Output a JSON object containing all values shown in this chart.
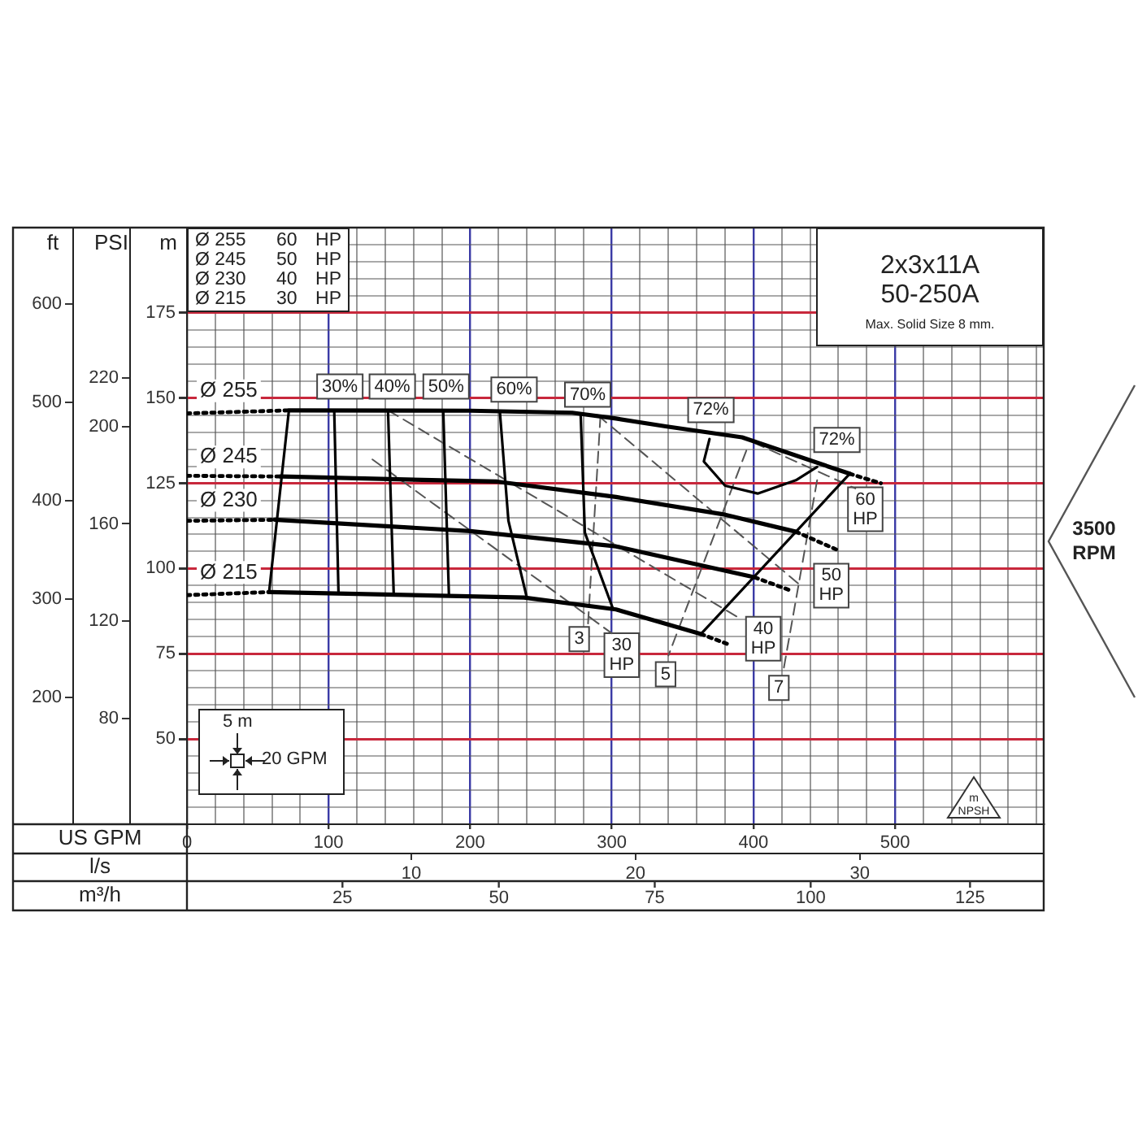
{
  "chart_data": {
    "type": "line",
    "xlabel": "US GPM",
    "x2label": "l/s",
    "ylabel": "m",
    "y2label": "ft",
    "y3label": "PSI",
    "xlim": [
      0,
      605
    ],
    "xticks": [
      0,
      {
        "value": 20,
        "label": null
      },
      {
        "value": 40,
        "label": null
      },
      {
        "value": 60,
        "label": null
      },
      {
        "value": 80,
        "label": null
      },
      100,
      {
        "value": 120,
        "label": null
      },
      {
        "value": 140,
        "label": null
      },
      {
        "value": 160,
        "label": null
      },
      {
        "value": 180,
        "label": null
      },
      200,
      {
        "value": 220,
        "label": null
      },
      {
        "value": 240,
        "label": null
      },
      {
        "value": 260,
        "label": null
      },
      {
        "value": 280,
        "label": null
      },
      300,
      {
        "value": 320,
        "label": null
      },
      {
        "value": 340,
        "label": null
      },
      {
        "value": 360,
        "label": null
      },
      {
        "value": 380,
        "label": null
      },
      400,
      {
        "value": 420,
        "label": null
      },
      {
        "value": 440,
        "label": null
      },
      {
        "value": 460,
        "label": null
      },
      {
        "value": 480,
        "label": null
      },
      500,
      {
        "value": 520,
        "label": null
      },
      {
        "value": 540,
        "label": null
      },
      {
        "value": 560,
        "label": null
      },
      {
        "value": 580,
        "label": null
      },
      {
        "value": 600,
        "label": null
      }
    ],
    "x2lim": [
      0,
      38.2
    ],
    "x2ticks": [
      10,
      20,
      30
    ],
    "ylim": [
      25,
      200
    ],
    "yticks": [
      {
        "value": 30,
        "label": null
      },
      {
        "value": 35,
        "label": null
      },
      {
        "value": 40,
        "label": null
      },
      {
        "value": 45,
        "label": null
      },
      50,
      {
        "value": 55,
        "label": null
      },
      {
        "value": 60,
        "label": null
      },
      {
        "value": 65,
        "label": null
      },
      {
        "value": 70,
        "label": null
      },
      75,
      {
        "value": 80,
        "label": null
      },
      {
        "value": 85,
        "label": null
      },
      {
        "value": 90,
        "label": null
      },
      {
        "value": 95,
        "label": null
      },
      100,
      {
        "value": 105,
        "label": null
      },
      {
        "value": 110,
        "label": null
      },
      {
        "value": 115,
        "label": null
      },
      {
        "value": 120,
        "label": null
      },
      125,
      {
        "value": 130,
        "label": null
      },
      {
        "value": 135,
        "label": null
      },
      {
        "value": 140,
        "label": null
      },
      {
        "value": 145,
        "label": null
      },
      150,
      {
        "value": 155,
        "label": null
      },
      {
        "value": 160,
        "label": null
      },
      {
        "value": 165,
        "label": null
      },
      {
        "value": 170,
        "label": null
      },
      175,
      {
        "value": 180,
        "label": null
      },
      {
        "value": 185,
        "label": null
      },
      {
        "value": 190,
        "label": null
      },
      {
        "value": 195,
        "label": null
      }
    ],
    "y2lim": [
      71,
      678
    ],
    "y2ticks": [
      200,
      300,
      400,
      500,
      600
    ],
    "y3lim": [
      36.5,
      281.8
    ],
    "y3ticks": [
      80,
      120,
      160,
      200,
      220
    ],
    "grid": true,
    "series": [
      {
        "name": "Ø 255",
        "color": "#000000",
        "line_style": "solid",
        "x": [
          72,
          200,
          272,
          303,
          338,
          392,
          468
        ],
        "values": [
          146.4,
          146.3,
          145.7,
          144,
          141.7,
          138.5,
          127.8
        ]
      },
      {
        "name": "Ø 245",
        "color": "#000000",
        "line_style": "solid",
        "x": [
          66,
          219,
          303,
          380,
          430
        ],
        "values": [
          127,
          125.5,
          121,
          115.8,
          110.8
        ]
      },
      {
        "name": "Ø 230",
        "color": "#000000",
        "line_style": "solid",
        "x": [
          62,
          200,
          303,
          401
        ],
        "values": [
          114.3,
          111,
          106.5,
          97.4
        ]
      },
      {
        "name": "Ø 215",
        "color": "#000000",
        "line_style": "solid",
        "x": [
          58,
          238,
          303,
          363
        ],
        "values": [
          93.1,
          91.5,
          88,
          80.8
        ]
      },
      {
        "color": "#000000",
        "line_style": "dotted",
        "x": [
          0,
          72
        ],
        "values": [
          145.5,
          146.4
        ]
      },
      {
        "color": "#000000",
        "line_style": "dotted",
        "x": [
          0,
          66
        ],
        "values": [
          127.2,
          127
        ]
      },
      {
        "color": "#000000",
        "line_style": "dotted",
        "x": [
          0,
          62
        ],
        "values": [
          114,
          114.3
        ]
      },
      {
        "color": "#000000",
        "line_style": "dotted",
        "x": [
          0,
          58
        ],
        "values": [
          92.2,
          93.1
        ]
      },
      {
        "color": "#000000",
        "line_style": "dotted",
        "x": [
          468,
          490
        ],
        "values": [
          127.8,
          125
        ]
      },
      {
        "color": "#000000",
        "line_style": "dotted",
        "x": [
          430,
          459
        ],
        "values": [
          110.8,
          105.5
        ]
      },
      {
        "color": "#000000",
        "line_style": "dotted",
        "x": [
          401,
          426
        ],
        "values": [
          97.4,
          93.6
        ]
      },
      {
        "color": "#000000",
        "line_style": "dotted",
        "x": [
          363,
          384
        ],
        "values": [
          80.8,
          77.5
        ]
      },
      {
        "color": "#000000",
        "line_style": "solid",
        "x": [
          72,
          58
        ],
        "values": [
          146.4,
          93.1
        ]
      },
      {
        "color": "#000000",
        "line_style": "solid",
        "x": [
          363,
          468
        ],
        "values": [
          80.8,
          127.8
        ]
      },
      {
        "color": "#000000",
        "line_style": "solid",
        "x": [
          104,
          107
        ],
        "values": [
          146.2,
          93
        ]
      },
      {
        "color": "#000000",
        "line_style": "solid",
        "x": [
          142,
          146
        ],
        "values": [
          146,
          92.5
        ]
      },
      {
        "color": "#000000",
        "line_style": "solid",
        "x": [
          181,
          185
        ],
        "values": [
          146,
          92
        ]
      },
      {
        "color": "#000000",
        "line_style": "solid",
        "x": [
          221,
          227,
          240
        ],
        "values": [
          145.8,
          114,
          91.5
        ]
      },
      {
        "color": "#000000",
        "line_style": "solid",
        "x": [
          278,
          281,
          301
        ],
        "values": [
          145.5,
          110.5,
          88
        ]
      },
      {
        "color": "#000000",
        "line_style": "solid",
        "x": [
          369,
          365,
          380,
          403,
          430,
          445
        ],
        "values": [
          138,
          131.4,
          124.3,
          122,
          125.9,
          129.8
        ]
      },
      {
        "color": "#555555",
        "line_style": "dashed",
        "x": [
          292,
          283
        ],
        "values": [
          144.8,
          82.3
        ]
      },
      {
        "color": "#555555",
        "line_style": "dashed",
        "x": [
          395,
          340
        ],
        "values": [
          134.6,
          74.5
        ]
      },
      {
        "color": "#555555",
        "line_style": "dashed",
        "x": [
          445,
          421
        ],
        "values": [
          125.9,
          69.7
        ]
      },
      {
        "color": "#555555",
        "line_style": "dashed",
        "x": [
          131,
          300
        ],
        "values": [
          132,
          81
        ]
      },
      {
        "color": "#555555",
        "line_style": "dashed",
        "x": [
          142,
          392
        ],
        "values": [
          146.4,
          85
        ]
      },
      {
        "color": "#555555",
        "line_style": "dashed",
        "x": [
          290,
          432
        ],
        "values": [
          145,
          95.5
        ]
      },
      {
        "color": "#555555",
        "line_style": "dashed",
        "x": [
          400,
          472
        ],
        "values": [
          137,
          123.5
        ]
      }
    ],
    "annotations": [
      "Ø 255 60 HP",
      "Ø 245 50 HP",
      "Ø 230 40 HP",
      "Ø 215 30 HP",
      "2x3x11A",
      "50-250A",
      "Max. Solid Size 8 mm.",
      "3500 RPM",
      "5 m",
      "20 GPM",
      "m",
      "NPSH",
      "m³/h",
      "25",
      "50",
      "75",
      "100",
      "125",
      {
        "text": "30%",
        "x": 108,
        "y": 153.4
      },
      {
        "text": "40%",
        "x": 145,
        "y": 153.4
      },
      {
        "text": "50%",
        "x": 183,
        "y": 153.4
      },
      {
        "text": "60%",
        "x": 231,
        "y": 152.5
      },
      {
        "text": "70%",
        "x": 283,
        "y": 151
      },
      {
        "text": "72%",
        "x": 370,
        "y": 146.5
      },
      {
        "text": "72%",
        "x": 459,
        "y": 137.7
      },
      {
        "text": "30 HP",
        "x": 307,
        "y": 74.6
      },
      {
        "text": "40 HP",
        "x": 407,
        "y": 79.4
      },
      {
        "text": "50 HP",
        "x": 455,
        "y": 95
      },
      {
        "text": "60 HP",
        "x": 479,
        "y": 117.4
      },
      {
        "text": "3",
        "x": 277,
        "y": 79.3
      },
      {
        "text": "5",
        "x": 338,
        "y": 69
      },
      {
        "text": "7",
        "x": 418,
        "y": 65
      }
    ]
  }
}
